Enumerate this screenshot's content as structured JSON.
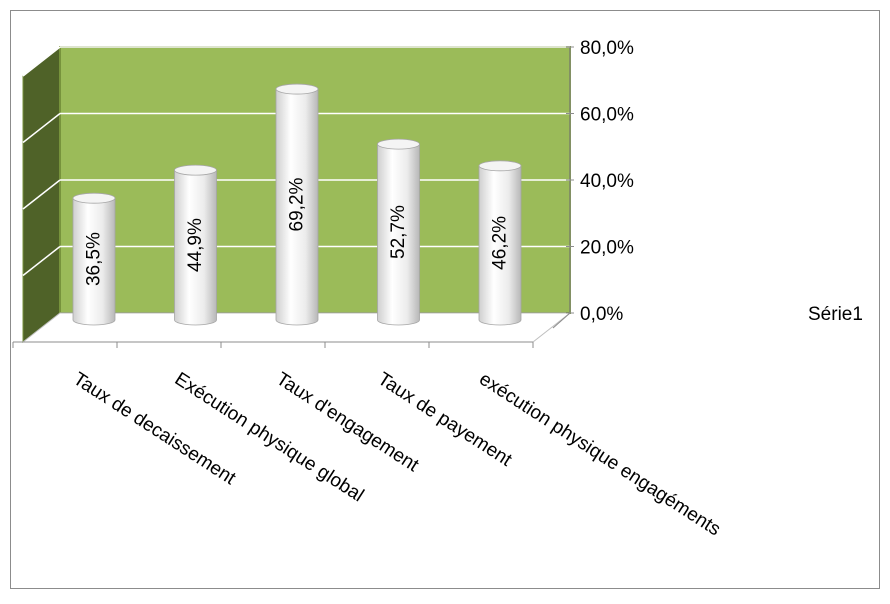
{
  "chart_data": {
    "type": "bar",
    "categories": [
      "Taux de decaissement",
      "Exécution physique global",
      "Taux d'engagement",
      "Taux de payement",
      "exécution physique  engagéments"
    ],
    "series": [
      {
        "name": "Série1",
        "values": [
          36.5,
          44.9,
          69.2,
          52.7,
          46.2
        ],
        "value_labels": [
          "36,5%",
          "44,9%",
          "69,2%",
          "52,7%",
          "46,2%"
        ]
      }
    ],
    "ylim": [
      0,
      80
    ],
    "ytick_values": [
      0,
      20,
      40,
      60,
      80
    ],
    "ytick_labels": [
      "0,0%",
      "20,0%",
      "40,0%",
      "60,0%",
      "80,0%"
    ],
    "grid": true,
    "legend_position": "right",
    "three_d": true,
    "colors": {
      "wall": "#9BBB59",
      "wall_side": "#4F6228",
      "wall_edge": "#77933C",
      "floor": "#ffffff",
      "bar_light": "#ffffff",
      "bar_dark": "#c8c8c8"
    }
  }
}
